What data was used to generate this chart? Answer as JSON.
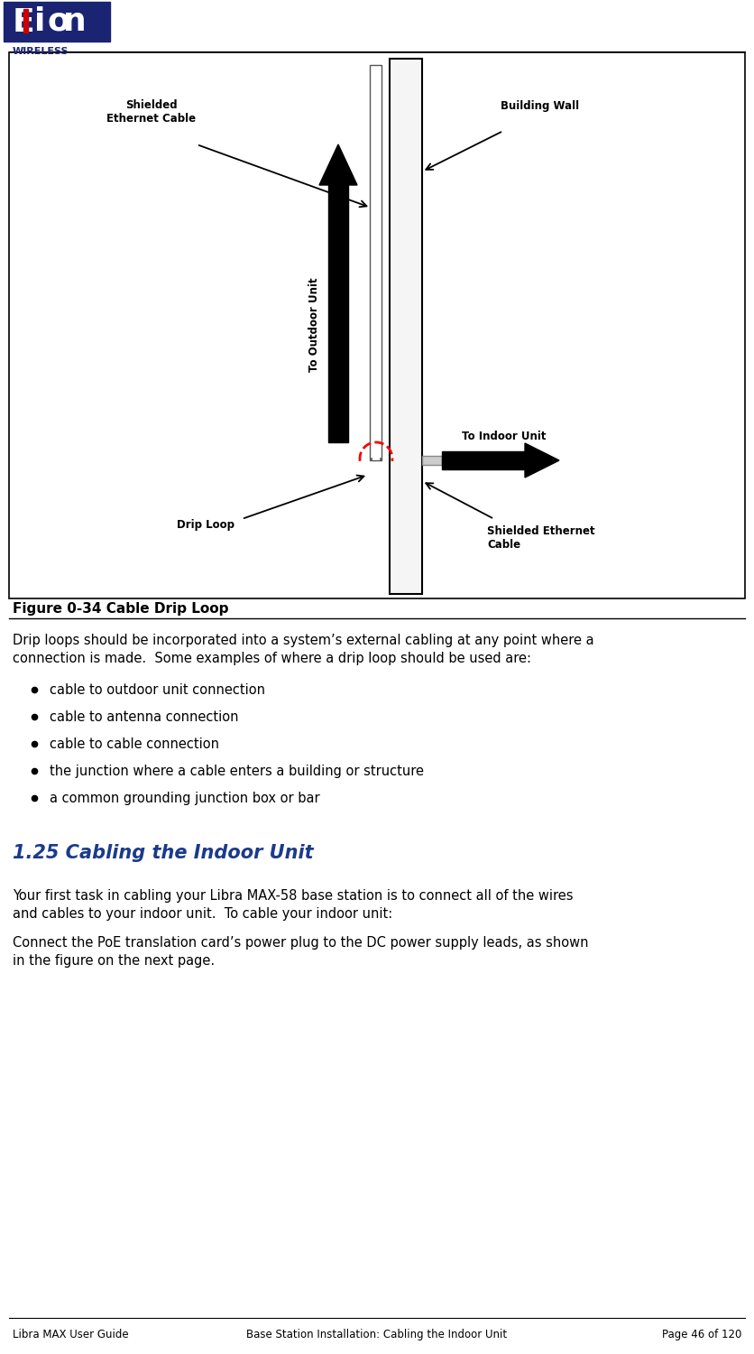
{
  "page_width": 8.36,
  "page_height": 15.0,
  "bg_color": "#ffffff",
  "figure_caption": "Figure 0-34 Cable Drip Loop",
  "diagram_labels": {
    "shielded_ethernet_cable_left": "Shielded\nEthernet Cable",
    "building_wall": "Building Wall",
    "to_outdoor_unit": "To Outdoor Unit",
    "to_indoor_unit": "To Indoor Unit",
    "drip_loop": "Drip Loop",
    "shielded_ethernet_cable_right": "Shielded Ethernet\nCable"
  },
  "body_line1": "Drip loops should be incorporated into a system’s external cabling at any point where a",
  "body_line2": "connection is made.  Some examples of where a drip loop should be used are:",
  "bullet_points": [
    "cable to outdoor unit connection",
    "cable to antenna connection",
    "cable to cable connection",
    "the junction where a cable enters a building or structure",
    "a common grounding junction box or bar"
  ],
  "section_heading": "1.25 Cabling the Indoor Unit",
  "sp1_line1": "Your first task in cabling your Libra MAX-58 base station is to connect all of the wires",
  "sp1_line2": "and cables to your indoor unit.  To cable your indoor unit:",
  "sp2_line1": "Connect the PoE translation card’s power plug to the DC power supply leads, as shown",
  "sp2_line2": "in the figure on the next page.",
  "footer_left": "Libra MAX User Guide",
  "footer_center": "Base Station Installation: Cabling the Indoor Unit",
  "footer_right": "Page 46 of 120",
  "navy_color": "#1a2472",
  "red_color": "#cc0000",
  "heading_color": "#1a3a8c",
  "label_fontsize": 8.5,
  "body_fontsize": 10.5,
  "heading_fontsize": 15,
  "footer_fontsize": 8.5
}
